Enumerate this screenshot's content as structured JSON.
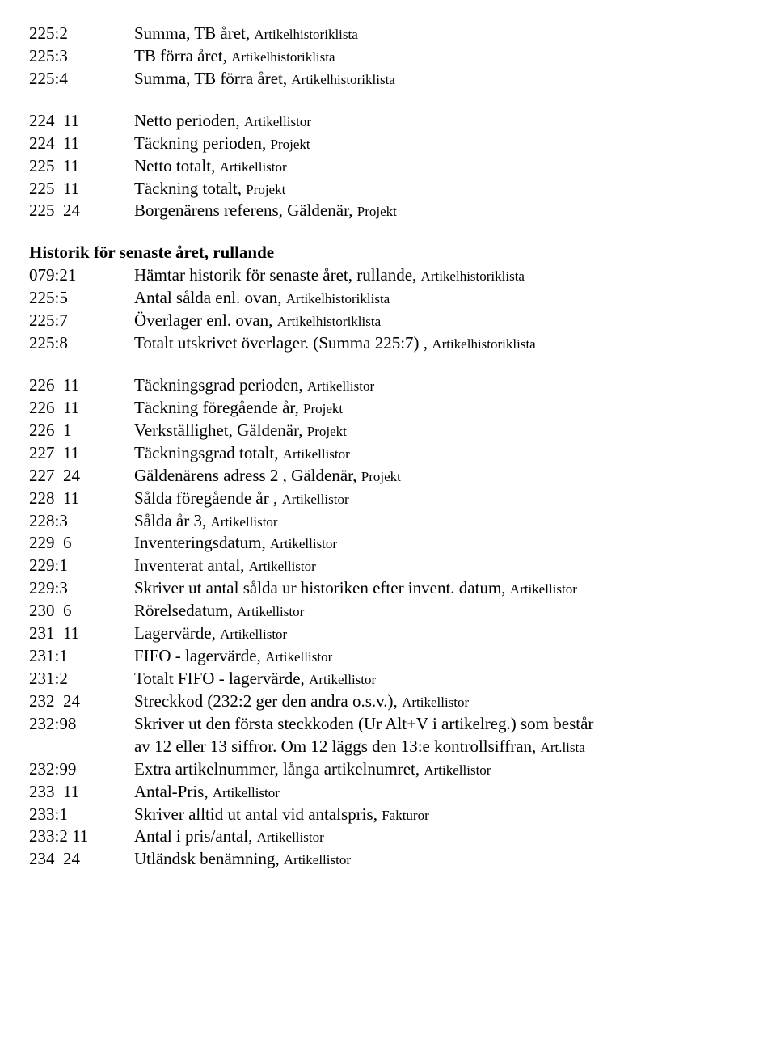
{
  "lines": [
    {
      "code": "225:2",
      "desc": "Summa, TB året, ",
      "ctx": "Artikelhistoriklista"
    },
    {
      "code": "225:3",
      "desc": "TB förra året, ",
      "ctx": "Artikelhistoriklista"
    },
    {
      "code": "225:4",
      "desc": "Summa, TB förra året, ",
      "ctx": "Artikelhistoriklista"
    },
    {
      "gap": true
    },
    {
      "code": "224  11",
      "desc": "Netto perioden, ",
      "ctx": "Artikellistor"
    },
    {
      "code": "224  11",
      "desc": "Täckning perioden, ",
      "ctx": "Projekt"
    },
    {
      "code": "225  11",
      "desc": "Netto totalt, ",
      "ctx": "Artikellistor"
    },
    {
      "code": "225  11",
      "desc": "Täckning totalt, ",
      "ctx": "Projekt"
    },
    {
      "code": "225  24",
      "desc": "Borgenärens referens, Gäldenär, ",
      "ctx": "Projekt"
    },
    {
      "gap": true
    },
    {
      "heading": "Historik för senaste året, rullande"
    },
    {
      "code": "079:21",
      "desc": "Hämtar historik för senaste året, rullande, ",
      "ctx": "Artikelhistoriklista"
    },
    {
      "code": "225:5",
      "desc": "Antal sålda enl. ovan, ",
      "ctx": "Artikelhistoriklista"
    },
    {
      "code": "225:7",
      "desc": "Överlager enl. ovan, ",
      "ctx": "Artikelhistoriklista"
    },
    {
      "code": "225:8",
      "desc": "Totalt utskrivet överlager. (Summa 225:7) , ",
      "ctx": "Artikelhistoriklista"
    },
    {
      "gap": true
    },
    {
      "code": "226  11",
      "desc": "Täckningsgrad perioden, ",
      "ctx": "Artikellistor"
    },
    {
      "code": "226  11",
      "desc": "Täckning föregående år, ",
      "ctx": "Projekt"
    },
    {
      "code": "226  1",
      "desc": "Verkställighet, Gäldenär, ",
      "ctx": "Projekt"
    },
    {
      "code": "227  11",
      "desc": "Täckningsgrad totalt, ",
      "ctx": "Artikellistor"
    },
    {
      "code": "227  24",
      "desc": "Gäldenärens adress 2 , Gäldenär, ",
      "ctx": "Projekt"
    },
    {
      "code": "228  11",
      "desc": "Sålda föregående år  , ",
      "ctx": "Artikellistor"
    },
    {
      "code": "228:3",
      "desc": "Sålda år 3, ",
      "ctx": "Artikellistor"
    },
    {
      "code": "229  6",
      "desc": "Inventeringsdatum, ",
      "ctx": "Artikellistor"
    },
    {
      "code": "229:1",
      "desc": "Inventerat antal, ",
      "ctx": "Artikellistor"
    },
    {
      "code": "229:3",
      "desc": "Skriver ut antal sålda ur historiken efter invent. datum, ",
      "ctx": "Artikellistor"
    },
    {
      "code": "230  6",
      "desc": "Rörelsedatum, ",
      "ctx": "Artikellistor"
    },
    {
      "code": "231  11",
      "desc": "Lagervärde, ",
      "ctx": "Artikellistor"
    },
    {
      "code": "231:1",
      "desc": "FIFO - lagervärde, ",
      "ctx": "Artikellistor"
    },
    {
      "code": "231:2",
      "desc": "Totalt FIFO - lagervärde, ",
      "ctx": "Artikellistor"
    },
    {
      "code": "232  24",
      "desc": "Streckkod (232:2 ger den andra o.s.v.), ",
      "ctx": "Artikellistor"
    },
    {
      "code": "232:98",
      "desc": "Skriver ut den första steckkoden (Ur Alt+V i artikelreg.) som består",
      "ctx": ""
    },
    {
      "hanging": true,
      "desc": "av 12 eller 13 siffror. Om 12 läggs den 13:e kontrollsiffran, ",
      "ctx": "Art.lista"
    },
    {
      "code": "232:99",
      "desc": "Extra artikelnummer, långa artikelnumret, ",
      "ctx": "Artikellistor"
    },
    {
      "code": "233  11",
      "desc": "Antal-Pris, ",
      "ctx": "Artikellistor"
    },
    {
      "code": "233:1",
      "desc": "Skriver alltid ut antal vid antalspris, ",
      "ctx": "Fakturor"
    },
    {
      "code": "233:2 11",
      "desc": "Antal i pris/antal, ",
      "ctx": "Artikellistor"
    },
    {
      "code": "234  24",
      "desc": "Utländsk benämning, ",
      "ctx": "Artikellistor"
    }
  ]
}
